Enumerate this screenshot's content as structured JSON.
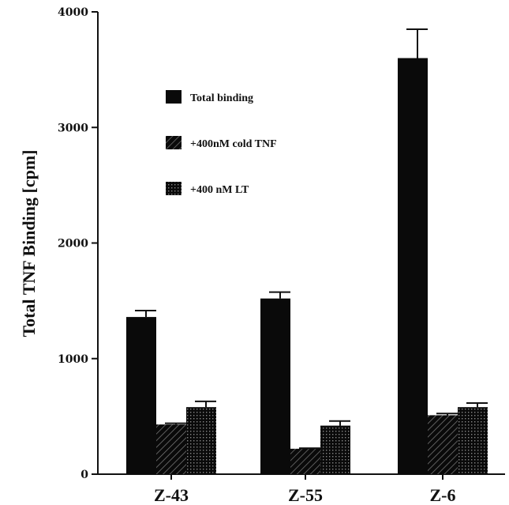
{
  "chart_data": {
    "type": "bar",
    "categories": [
      "Z-43",
      "Z-55",
      "Z-6"
    ],
    "series": [
      {
        "name": "Total binding",
        "values": [
          1360,
          1520,
          3600
        ],
        "errors": [
          55,
          55,
          250
        ],
        "fill": "solid"
      },
      {
        "name": "+400nM cold TNF",
        "values": [
          430,
          220,
          510
        ],
        "errors": [
          10,
          5,
          15
        ],
        "fill": "hatch"
      },
      {
        "name": "+400 nM LT",
        "values": [
          580,
          420,
          580
        ],
        "errors": [
          50,
          40,
          35
        ],
        "fill": "dots"
      }
    ],
    "ylabel": "Total TNF Binding [cpm]",
    "xlabel": "",
    "ylim": [
      0,
      4000
    ],
    "yticks": [
      0,
      1000,
      2000,
      3000,
      4000
    ],
    "legend_placement": "upper-center",
    "grid": false,
    "colors": {
      "bar": "#0a0a0a",
      "axis": "#111111"
    }
  }
}
